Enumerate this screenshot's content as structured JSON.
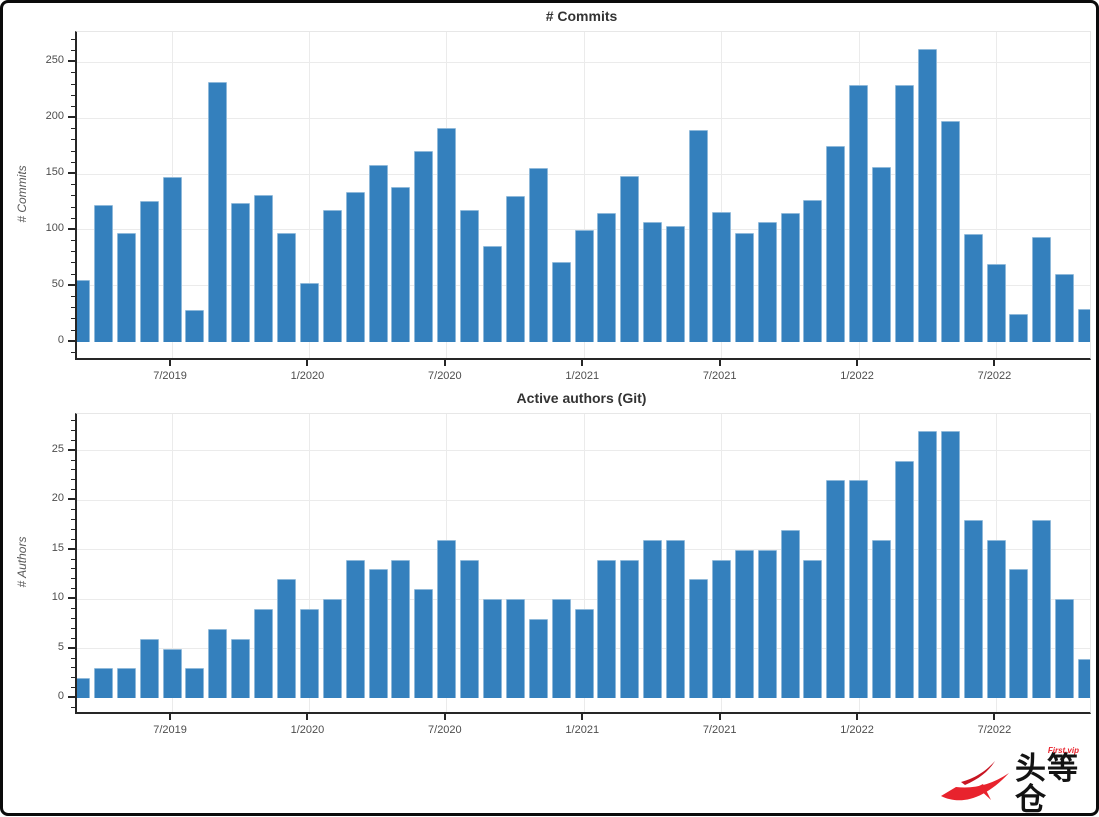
{
  "figure": {
    "background": "#ffffff",
    "border_color": "#0b0b0b",
    "grid_color": "#ebebeb",
    "spine_color": "#262626",
    "tick_label_color": "#4d4d4d",
    "title_color": "#333333"
  },
  "logo": {
    "brand_text": "头等仓",
    "brand_subtext": "First.vip",
    "swoosh_color": "#e8232d",
    "text_color": "#131313",
    "subtext_color": "#e8232d"
  },
  "chart_data": [
    {
      "type": "bar",
      "title": "# Commits",
      "ylabel": "# Commits",
      "xlabel": "",
      "bar_color": "#3480bd",
      "grid": true,
      "legend": "none",
      "ylim": [
        -14.5,
        277
      ],
      "yticks": [
        0,
        50,
        100,
        150,
        200,
        250
      ],
      "yminor_step": 10,
      "xticks": [
        "7/2019",
        "1/2020",
        "7/2020",
        "1/2021",
        "7/2021",
        "1/2022",
        "7/2022"
      ],
      "categories": [
        "3/2019",
        "4/2019",
        "5/2019",
        "6/2019",
        "7/2019",
        "8/2019",
        "9/2019",
        "10/2019",
        "11/2019",
        "12/2019",
        "1/2020",
        "2/2020",
        "3/2020",
        "4/2020",
        "5/2020",
        "6/2020",
        "7/2020",
        "8/2020",
        "9/2020",
        "10/2020",
        "11/2020",
        "12/2020",
        "1/2021",
        "2/2021",
        "3/2021",
        "4/2021",
        "5/2021",
        "6/2021",
        "7/2021",
        "8/2021",
        "9/2021",
        "10/2021",
        "11/2021",
        "12/2021",
        "1/2022",
        "2/2022",
        "3/2022",
        "4/2022",
        "5/2022",
        "6/2022",
        "7/2022",
        "8/2022",
        "9/2022",
        "10/2022",
        "11/2022"
      ],
      "values": [
        55,
        122,
        97,
        126,
        147,
        28,
        232,
        124,
        131,
        97,
        53,
        118,
        134,
        158,
        138,
        171,
        191,
        118,
        86,
        130,
        155,
        71,
        100,
        115,
        148,
        107,
        104,
        189,
        116,
        97,
        107,
        115,
        127,
        175,
        230,
        156,
        230,
        262,
        197,
        96,
        70,
        25,
        94,
        61,
        29
      ]
    },
    {
      "type": "bar",
      "title": "Active authors (Git)",
      "ylabel": "# Authors",
      "xlabel": "",
      "bar_color": "#3480bd",
      "grid": true,
      "legend": "none",
      "ylim": [
        -1.4,
        28.7
      ],
      "yticks": [
        0,
        5,
        10,
        15,
        20,
        25
      ],
      "yminor_step": 1,
      "xticks": [
        "7/2019",
        "1/2020",
        "7/2020",
        "1/2021",
        "7/2021",
        "1/2022",
        "7/2022"
      ],
      "categories": [
        "3/2019",
        "4/2019",
        "5/2019",
        "6/2019",
        "7/2019",
        "8/2019",
        "9/2019",
        "10/2019",
        "11/2019",
        "12/2019",
        "1/2020",
        "2/2020",
        "3/2020",
        "4/2020",
        "5/2020",
        "6/2020",
        "7/2020",
        "8/2020",
        "9/2020",
        "10/2020",
        "11/2020",
        "12/2020",
        "1/2021",
        "2/2021",
        "3/2021",
        "4/2021",
        "5/2021",
        "6/2021",
        "7/2021",
        "8/2021",
        "9/2021",
        "10/2021",
        "11/2021",
        "12/2021",
        "1/2022",
        "2/2022",
        "3/2022",
        "4/2022",
        "5/2022",
        "6/2022",
        "7/2022",
        "8/2022",
        "9/2022",
        "10/2022",
        "11/2022"
      ],
      "values": [
        2,
        3,
        3,
        6,
        5,
        3,
        7,
        6,
        9,
        12,
        9,
        10,
        14,
        13,
        14,
        11,
        16,
        14,
        10,
        10,
        8,
        10,
        9,
        14,
        14,
        16,
        16,
        12,
        14,
        15,
        15,
        17,
        14,
        22,
        22,
        16,
        24,
        27,
        27,
        18,
        16,
        13,
        18,
        10,
        4
      ]
    }
  ]
}
